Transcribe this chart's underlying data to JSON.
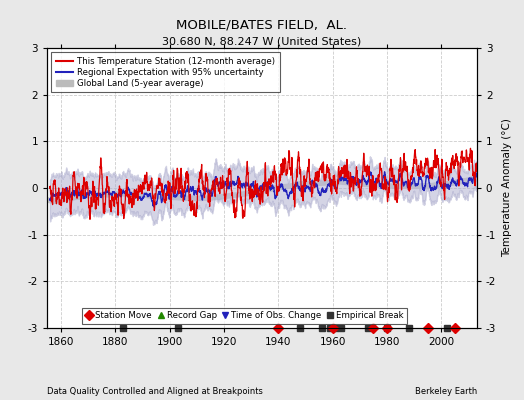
{
  "title": "MOBILE/BATES FIELD,  AL.",
  "subtitle": "30.680 N, 88.247 W (United States)",
  "ylabel": "Temperature Anomaly (°C)",
  "xlabel_bottom": "Data Quality Controlled and Aligned at Breakpoints",
  "xlabel_right": "Berkeley Earth",
  "ylim": [
    -3,
    3
  ],
  "xlim": [
    1855,
    2013
  ],
  "xticks": [
    1860,
    1880,
    1900,
    1920,
    1940,
    1960,
    1980,
    2000
  ],
  "yticks": [
    -3,
    -2,
    -1,
    0,
    1,
    2,
    3
  ],
  "bg_color": "#e8e8e8",
  "plot_bg_color": "#ffffff",
  "grid_color": "#cccccc",
  "station_line_color": "#dd0000",
  "regional_line_color": "#2222bb",
  "regional_fill_color": "#aaaacc",
  "global_fill_color": "#bbbbbb",
  "legend_items": [
    {
      "label": "This Temperature Station (12-month average)",
      "color": "#dd0000",
      "lw": 1.5
    },
    {
      "label": "Regional Expectation with 95% uncertainty",
      "color": "#2222bb",
      "lw": 1.5
    },
    {
      "label": "Global Land (5-year average)",
      "color": "#bbbbbb",
      "lw": 4
    }
  ],
  "marker_legend": [
    {
      "label": "Station Move",
      "marker": "D",
      "color": "#dd0000"
    },
    {
      "label": "Record Gap",
      "marker": "^",
      "color": "#228800"
    },
    {
      "label": "Time of Obs. Change",
      "marker": "v",
      "color": "#2222bb"
    },
    {
      "label": "Empirical Break",
      "marker": "s",
      "color": "#333333"
    }
  ],
  "station_move_years": [
    1940,
    1960,
    1975,
    1980,
    1995,
    2005
  ],
  "empirical_break_years": [
    1883,
    1903,
    1948,
    1956,
    1959,
    1961,
    1963,
    1973,
    1980,
    1988,
    2002
  ],
  "seed": 12345,
  "start_year": 1856,
  "end_year": 2012
}
